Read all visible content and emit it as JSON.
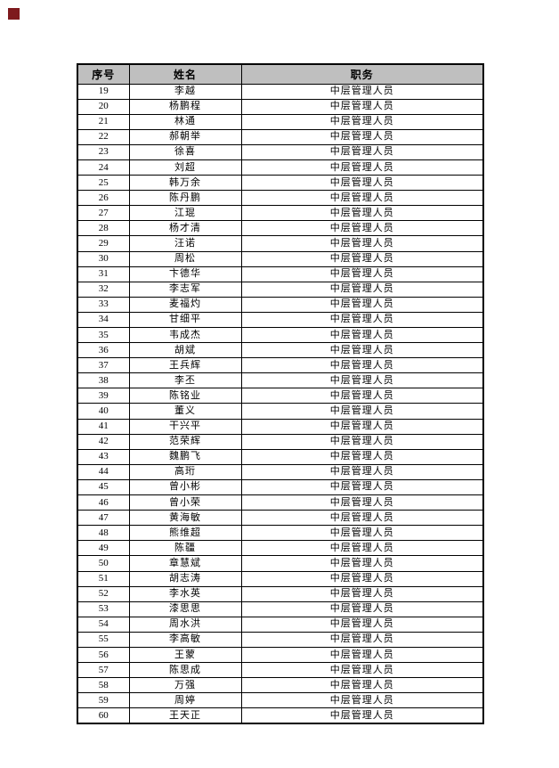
{
  "page": {
    "background_color": "#ffffff",
    "corner_marker_color": "#7e1a1d"
  },
  "table": {
    "header_bg_color": "#bfbfbf",
    "border_color": "#000000",
    "headers": [
      "序号",
      "姓名",
      "职务"
    ],
    "rows": [
      {
        "no": "19",
        "name": "李越",
        "title": "中层管理人员"
      },
      {
        "no": "20",
        "name": "杨鹏程",
        "title": "中层管理人员"
      },
      {
        "no": "21",
        "name": "林通",
        "title": "中层管理人员"
      },
      {
        "no": "22",
        "name": "郝朝举",
        "title": "中层管理人员"
      },
      {
        "no": "23",
        "name": "徐喜",
        "title": "中层管理人员"
      },
      {
        "no": "24",
        "name": "刘超",
        "title": "中层管理人员"
      },
      {
        "no": "25",
        "name": "韩万余",
        "title": "中层管理人员"
      },
      {
        "no": "26",
        "name": "陈丹鹏",
        "title": "中层管理人员"
      },
      {
        "no": "27",
        "name": "江琨",
        "title": "中层管理人员"
      },
      {
        "no": "28",
        "name": "杨才清",
        "title": "中层管理人员"
      },
      {
        "no": "29",
        "name": "汪诺",
        "title": "中层管理人员"
      },
      {
        "no": "30",
        "name": "周松",
        "title": "中层管理人员"
      },
      {
        "no": "31",
        "name": "卞德华",
        "title": "中层管理人员"
      },
      {
        "no": "32",
        "name": "李志军",
        "title": "中层管理人员"
      },
      {
        "no": "33",
        "name": "麦福灼",
        "title": "中层管理人员"
      },
      {
        "no": "34",
        "name": "甘细平",
        "title": "中层管理人员"
      },
      {
        "no": "35",
        "name": "韦成杰",
        "title": "中层管理人员"
      },
      {
        "no": "36",
        "name": "胡斌",
        "title": "中层管理人员"
      },
      {
        "no": "37",
        "name": "王兵辉",
        "title": "中层管理人员"
      },
      {
        "no": "38",
        "name": "李丕",
        "title": "中层管理人员"
      },
      {
        "no": "39",
        "name": "陈铭业",
        "title": "中层管理人员"
      },
      {
        "no": "40",
        "name": "董义",
        "title": "中层管理人员"
      },
      {
        "no": "41",
        "name": "干兴平",
        "title": "中层管理人员"
      },
      {
        "no": "42",
        "name": "范荣辉",
        "title": "中层管理人员"
      },
      {
        "no": "43",
        "name": "魏鹏飞",
        "title": "中层管理人员"
      },
      {
        "no": "44",
        "name": "高珩",
        "title": "中层管理人员"
      },
      {
        "no": "45",
        "name": "曾小彬",
        "title": "中层管理人员"
      },
      {
        "no": "46",
        "name": "曾小荣",
        "title": "中层管理人员"
      },
      {
        "no": "47",
        "name": "黄海敏",
        "title": "中层管理人员"
      },
      {
        "no": "48",
        "name": "熊维超",
        "title": "中层管理人员"
      },
      {
        "no": "49",
        "name": "陈疆",
        "title": "中层管理人员"
      },
      {
        "no": "50",
        "name": "章慧斌",
        "title": "中层管理人员"
      },
      {
        "no": "51",
        "name": "胡志涛",
        "title": "中层管理人员"
      },
      {
        "no": "52",
        "name": "李水英",
        "title": "中层管理人员"
      },
      {
        "no": "53",
        "name": "漆思思",
        "title": "中层管理人员"
      },
      {
        "no": "54",
        "name": "周水洪",
        "title": "中层管理人员"
      },
      {
        "no": "55",
        "name": "李高敏",
        "title": "中层管理人员"
      },
      {
        "no": "56",
        "name": "王蒙",
        "title": "中层管理人员"
      },
      {
        "no": "57",
        "name": "陈思成",
        "title": "中层管理人员"
      },
      {
        "no": "58",
        "name": "万强",
        "title": "中层管理人员"
      },
      {
        "no": "59",
        "name": "周婷",
        "title": "中层管理人员"
      },
      {
        "no": "60",
        "name": "王天正",
        "title": "中层管理人员"
      }
    ]
  }
}
